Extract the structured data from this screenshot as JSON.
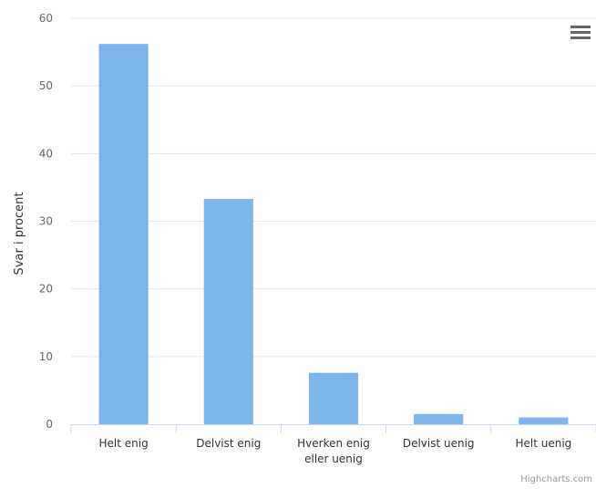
{
  "chart_data": {
    "type": "bar",
    "title": "",
    "xlabel": "",
    "ylabel": "Svar i procent",
    "categories": [
      "Helt enig",
      "Delvist enig",
      "Hverken enig eller uenig",
      "Delvist uenig",
      "Helt uenig"
    ],
    "category_label_lines": [
      [
        "Helt enig"
      ],
      [
        "Delvist enig"
      ],
      [
        "Hverken enig",
        "eller uenig"
      ],
      [
        "Delvist uenig"
      ],
      [
        "Helt uenig"
      ]
    ],
    "values": [
      56.2,
      33.3,
      7.6,
      1.5,
      1.0
    ],
    "ylim": [
      0,
      60
    ],
    "yticks": [
      0,
      10,
      20,
      30,
      40,
      50,
      60
    ],
    "grid": true,
    "legend": "none",
    "bar_color": "#7cb5ec"
  },
  "ui": {
    "menu_icon": "hamburger-menu-icon",
    "credits": "Highcharts.com"
  }
}
